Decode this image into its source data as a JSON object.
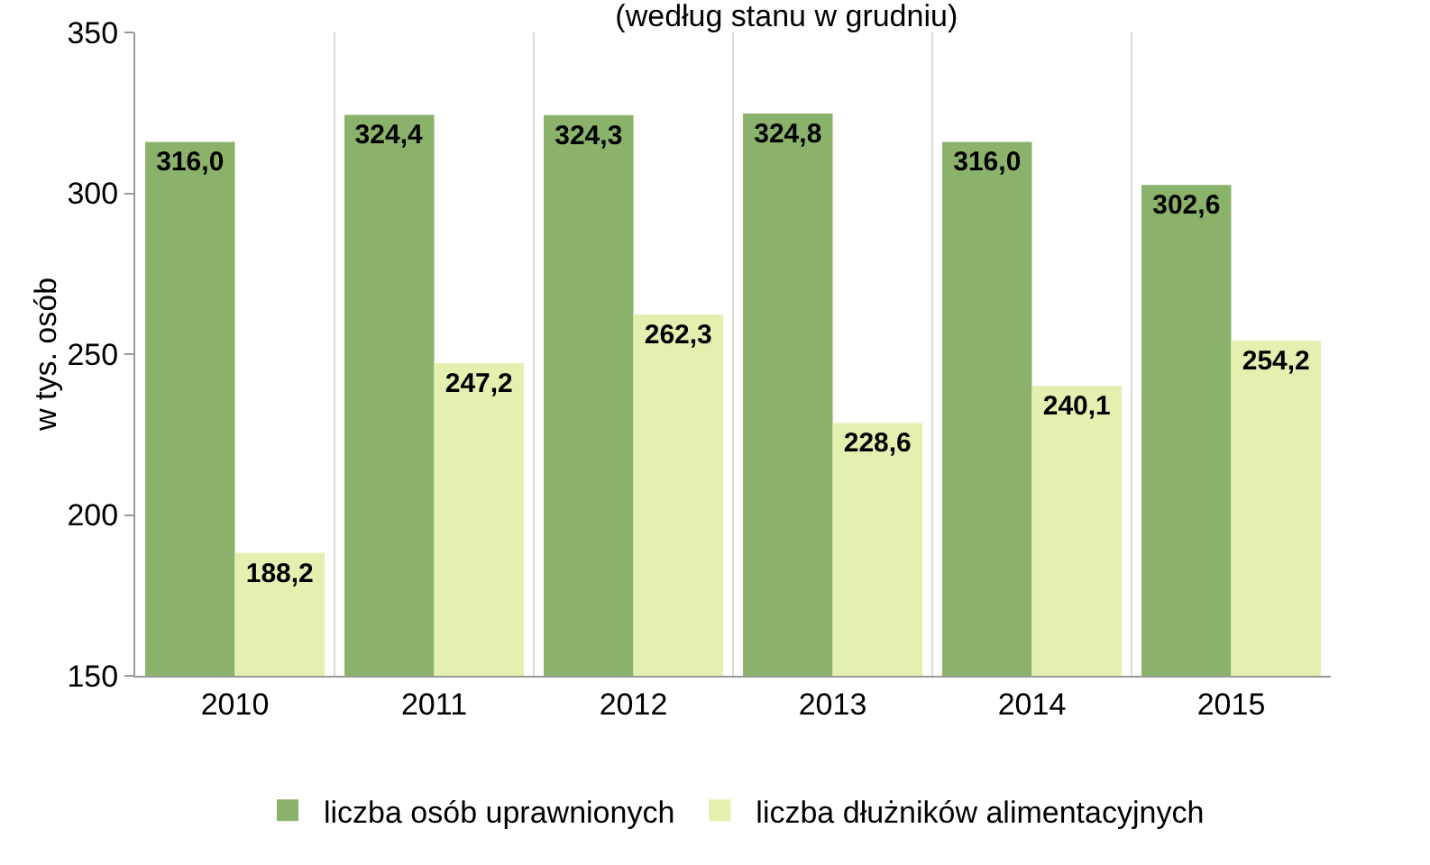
{
  "chart_data": {
    "type": "bar",
    "title": "(według stanu w grudniu)",
    "ylabel": "w tys. osób",
    "categories": [
      "2010",
      "2011",
      "2012",
      "2013",
      "2014",
      "2015"
    ],
    "series": [
      {
        "name": "liczba osób uprawnionych",
        "color": "#8bb26b",
        "values": [
          316.0,
          324.4,
          324.3,
          324.8,
          316.0,
          302.6
        ],
        "value_labels": [
          "316,0",
          "324,4",
          "324,3",
          "324,8",
          "316,0",
          "302,6"
        ]
      },
      {
        "name": "liczba dłużników alimentacyjnych",
        "color": "#e4f0b0",
        "values": [
          188.2,
          247.2,
          262.3,
          228.6,
          240.1,
          254.2
        ],
        "value_labels": [
          "188,2",
          "247,2",
          "262,3",
          "228,6",
          "240,1",
          "254,2"
        ]
      }
    ],
    "ylim": [
      150,
      350
    ],
    "yticks": [
      150,
      200,
      250,
      300,
      350
    ],
    "grid": "x",
    "legend": "bottom"
  }
}
